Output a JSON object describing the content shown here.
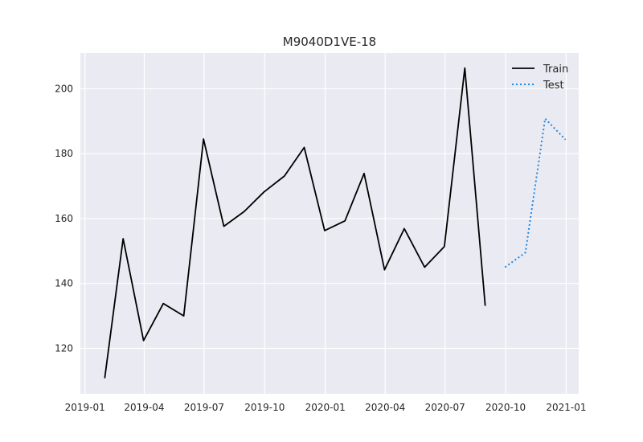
{
  "chart_data": {
    "type": "line",
    "title": "M9040D1VE-18",
    "xlabel": "",
    "ylabel": "",
    "xlim": [
      "2018-12-25",
      "2021-01-20"
    ],
    "ylim": [
      106,
      211
    ],
    "grid": true,
    "legend_position": "top-right",
    "x_ticks": [
      "2019-01-01",
      "2019-04-01",
      "2019-07-01",
      "2019-10-01",
      "2020-01-01",
      "2020-04-01",
      "2020-07-01",
      "2020-10-01",
      "2021-01-01"
    ],
    "x_tick_labels": [
      "2019-01",
      "2019-04",
      "2019-07",
      "2019-10",
      "2020-01",
      "2020-04",
      "2020-07",
      "2020-10",
      "2021-01"
    ],
    "y_ticks": [
      120,
      140,
      160,
      180,
      200
    ],
    "y_tick_labels": [
      "120",
      "140",
      "160",
      "180",
      "200"
    ],
    "series": [
      {
        "name": "Train",
        "color": "#000000",
        "style": "solid",
        "x": [
          "2019-01-31",
          "2019-02-28",
          "2019-03-31",
          "2019-04-30",
          "2019-05-31",
          "2019-06-30",
          "2019-07-31",
          "2019-08-31",
          "2019-09-30",
          "2019-10-31",
          "2019-11-30",
          "2019-12-31",
          "2020-01-31",
          "2020-02-29",
          "2020-03-31",
          "2020-04-30",
          "2020-05-31",
          "2020-06-30",
          "2020-07-31",
          "2020-08-31"
        ],
        "y": [
          110.8,
          153.8,
          122.4,
          133.8,
          130.0,
          184.5,
          157.6,
          162.2,
          168.2,
          173.1,
          181.9,
          156.3,
          159.3,
          173.9,
          144.2,
          156.9,
          145.0,
          151.4,
          206.4,
          133.1
        ]
      },
      {
        "name": "Test",
        "color": "#1e88e5",
        "style": "dotted",
        "x": [
          "2020-09-30",
          "2020-10-31",
          "2020-11-30",
          "2020-12-31"
        ],
        "y": [
          145.0,
          149.5,
          190.8,
          184.3
        ]
      }
    ]
  }
}
